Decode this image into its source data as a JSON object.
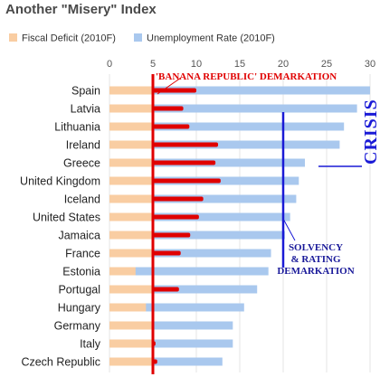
{
  "chart_data": {
    "type": "bar",
    "orientation": "horizontal",
    "title": "Another \"Misery\" Index",
    "categories": [
      "Spain",
      "Latvia",
      "Lithuania",
      "Ireland",
      "Greece",
      "United Kingdom",
      "Iceland",
      "United States",
      "Jamaica",
      "France",
      "Estonia",
      "Portugal",
      "Hungary",
      "Germany",
      "Italy",
      "Czech Republic"
    ],
    "series": [
      {
        "name": "Fiscal Deficit (2010F)",
        "color": "#f9cda2",
        "values": [
          10.0,
          8.5,
          9.2,
          12.5,
          12.2,
          12.8,
          10.8,
          10.3,
          9.3,
          8.2,
          3.0,
          8.0,
          4.2,
          5.0,
          5.3,
          5.5
        ]
      },
      {
        "name": "Unemployment Rate (2010F)",
        "color": "#a9c8ee",
        "values": [
          30.0,
          28.5,
          27.0,
          26.5,
          22.5,
          21.8,
          21.5,
          20.8,
          20.2,
          18.6,
          18.3,
          17.0,
          15.5,
          14.2,
          14.2,
          13.0
        ]
      }
    ],
    "xlim": [
      0,
      30
    ],
    "xticks": [
      0,
      5,
      10,
      15,
      20,
      25,
      30
    ],
    "legend_position": "top",
    "grid": true,
    "overlay_color": "#e00000",
    "reference_lines": [
      {
        "value": 5,
        "color": "#e00000",
        "label": "'BANANA REPUBLIC' DEMARKATION"
      },
      {
        "value": 20,
        "color": "#1a1ad6",
        "label_lines": [
          "SOLVENCY",
          "& RATING",
          "DEMARKATION"
        ]
      }
    ],
    "annotations": [
      {
        "text": "CRISIS",
        "color": "#1a1ad6"
      }
    ]
  },
  "icons": {
    "legend_swatch_deficit": "square-swatch",
    "legend_swatch_unemployment": "square-swatch"
  }
}
